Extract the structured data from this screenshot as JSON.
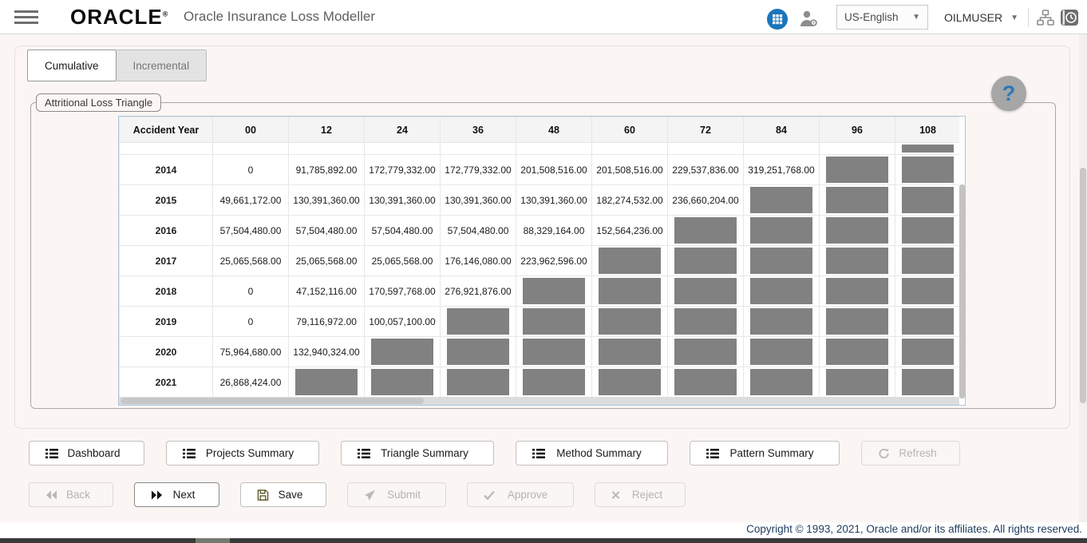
{
  "header": {
    "brand": "ORACLE",
    "brand_mark": "®",
    "app_title": "Oracle Insurance Loss Modeller",
    "language_value": "US-English",
    "username": "OILMUSER"
  },
  "tabs": [
    {
      "label": "Cumulative",
      "active": true
    },
    {
      "label": "Incremental",
      "active": false
    }
  ],
  "panel": {
    "fieldset_label": "Attritional Loss Triangle",
    "help_glyph": "?"
  },
  "table": {
    "columns": [
      "Accident Year",
      "00",
      "12",
      "24",
      "36",
      "48",
      "60",
      "72",
      "84",
      "96",
      "108"
    ],
    "rows": [
      {
        "year": "",
        "partial": true,
        "values": [
          "",
          "",
          "",
          "",
          "",
          "",
          "",
          "",
          "",
          null
        ]
      },
      {
        "year": "2014",
        "values": [
          "0",
          "91,785,892.00",
          "172,779,332.00",
          "172,779,332.00",
          "201,508,516.00",
          "201,508,516.00",
          "229,537,836.00",
          "319,251,768.00",
          null,
          null
        ]
      },
      {
        "year": "2015",
        "values": [
          "49,661,172.00",
          "130,391,360.00",
          "130,391,360.00",
          "130,391,360.00",
          "130,391,360.00",
          "182,274,532.00",
          "236,660,204.00",
          null,
          null,
          null
        ]
      },
      {
        "year": "2016",
        "values": [
          "57,504,480.00",
          "57,504,480.00",
          "57,504,480.00",
          "57,504,480.00",
          "88,329,164.00",
          "152,564,236.00",
          null,
          null,
          null,
          null
        ]
      },
      {
        "year": "2017",
        "values": [
          "25,065,568.00",
          "25,065,568.00",
          "25,065,568.00",
          "176,146,080.00",
          "223,962,596.00",
          null,
          null,
          null,
          null,
          null
        ]
      },
      {
        "year": "2018",
        "values": [
          "0",
          "47,152,116.00",
          "170,597,768.00",
          "276,921,876.00",
          null,
          null,
          null,
          null,
          null,
          null
        ]
      },
      {
        "year": "2019",
        "values": [
          "0",
          "79,116,972.00",
          "100,057,100.00",
          null,
          null,
          null,
          null,
          null,
          null,
          null
        ]
      },
      {
        "year": "2020",
        "values": [
          "75,964,680.00",
          "132,940,324.00",
          null,
          null,
          null,
          null,
          null,
          null,
          null,
          null
        ]
      },
      {
        "year": "2021",
        "values": [
          "26,868,424.00",
          null,
          null,
          null,
          null,
          null,
          null,
          null,
          null,
          null
        ]
      }
    ]
  },
  "actions": {
    "row1": [
      {
        "label": "Dashboard",
        "icon": "list-icon",
        "enabled": true
      },
      {
        "label": "Projects Summary",
        "icon": "list-icon",
        "enabled": true
      },
      {
        "label": "Triangle Summary",
        "icon": "list-icon",
        "enabled": true
      },
      {
        "label": "Method Summary",
        "icon": "list-icon",
        "enabled": true
      },
      {
        "label": "Pattern Summary",
        "icon": "list-icon",
        "enabled": true
      },
      {
        "label": "Refresh",
        "icon": "refresh-icon",
        "enabled": false
      }
    ],
    "row2": [
      {
        "label": "Back",
        "icon": "double-chevron-left-icon",
        "enabled": false
      },
      {
        "label": "Next",
        "icon": "double-chevron-right-icon",
        "enabled": true
      },
      {
        "label": "Save",
        "icon": "save-icon",
        "enabled": true
      },
      {
        "label": "Submit",
        "icon": "send-icon",
        "enabled": false
      },
      {
        "label": "Approve",
        "icon": "check-icon",
        "enabled": false
      },
      {
        "label": "Reject",
        "icon": "x-icon",
        "enabled": false
      }
    ]
  },
  "footer": {
    "copyright": "Copyright © 1993, 2021, Oracle and/or its affiliates. All rights reserved."
  },
  "colors": {
    "accent_blue": "#1976ba",
    "mask_gray": "#818181",
    "table_border_blue": "#a9c7de",
    "help_question_blue": "#2779bd"
  }
}
